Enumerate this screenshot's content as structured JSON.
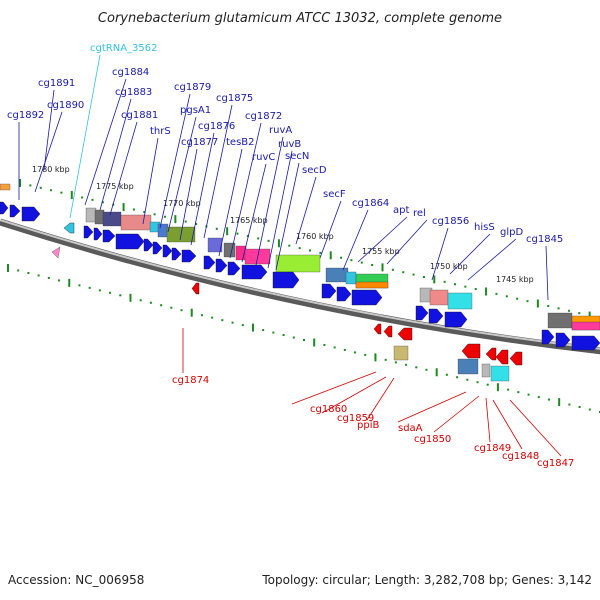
{
  "title": "Corynebacterium glutamicum ATCC 13032, complete genome",
  "footer": {
    "accession": "Accession: NC_006958",
    "topology": "Topology: circular; Length: 3,282,708 bp; Genes: 3,142"
  },
  "colors": {
    "forward_arrow": "#1212e0",
    "reverse_arrow": "#ee0000",
    "forward_label": "#1a1aa6",
    "reverse_label": "#d40000",
    "rna_label": "#33c4e0",
    "tick": "#1c8a1c",
    "backbone": "#8c8c8c"
  },
  "scale_labels": [
    "1780 kbp",
    "1775 kbp",
    "1770 kbp",
    "1765 kbp",
    "1760 kbp",
    "1755 kbp",
    "1750 kbp",
    "1745 kbp"
  ],
  "forward_labels": [
    "cg1892",
    "cg1891",
    "cg1890",
    "cg1884",
    "cg1883",
    "cg1881",
    "thrS",
    "cg1879",
    "pgsA1",
    "cg1877",
    "cg1876",
    "cg1875",
    "tesB2",
    "cg1872",
    "ruvC",
    "ruvA",
    "ruvB",
    "secN",
    "secD",
    "secF",
    "cg1864",
    "apt",
    "rel",
    "cg1856",
    "hisS",
    "glpD",
    "cg1845"
  ],
  "rna_labels": [
    "cgtRNA_3562"
  ],
  "reverse_labels": [
    "cg1874",
    "cg1860",
    "cg1859",
    "ppiB",
    "sdaA",
    "cg1850",
    "cg1849",
    "cg1848",
    "cg1847"
  ]
}
